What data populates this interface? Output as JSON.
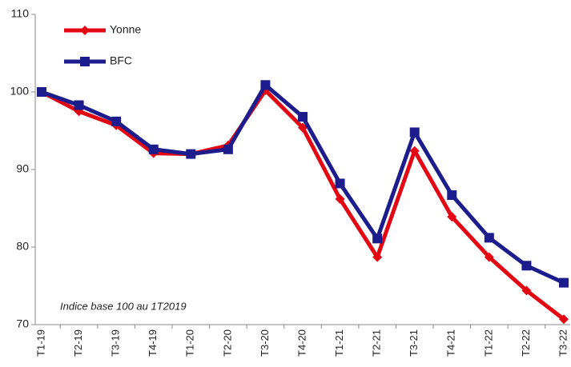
{
  "chart_data": {
    "type": "line",
    "categories": [
      "T1-19",
      "T2-19",
      "T3-19",
      "T4-19",
      "T1-20",
      "T2-20",
      "T3-20",
      "T4-20",
      "T1-21",
      "T2-21",
      "T3-21",
      "T4-21",
      "T1-22",
      "T2-22",
      "T3-22"
    ],
    "series": [
      {
        "name": "Yonne",
        "color": "#e30613",
        "marker": "diamond",
        "values": [
          100,
          97.5,
          95.7,
          92.1,
          92,
          93.1,
          100.2,
          95.4,
          86.2,
          78.7,
          92.4,
          83.9,
          78.7,
          74.4,
          70.7
        ]
      },
      {
        "name": "BFC",
        "color": "#1c1c8c",
        "marker": "square",
        "values": [
          100,
          98.3,
          96.2,
          92.6,
          92,
          92.6,
          100.9,
          96.8,
          88.2,
          81.1,
          94.8,
          86.7,
          81.2,
          77.6,
          75.4
        ]
      }
    ],
    "ylim": [
      70,
      110
    ],
    "yticks": [
      70,
      80,
      90,
      100,
      110
    ],
    "annotation": "Indice base 100 au 1T2019"
  }
}
